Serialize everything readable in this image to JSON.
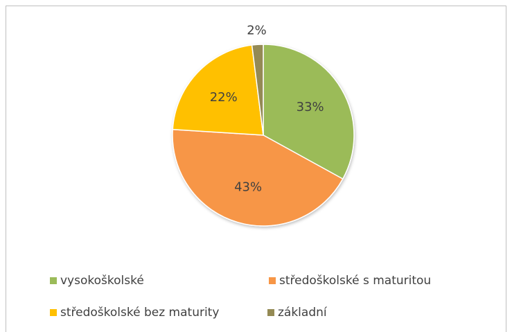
{
  "chart_data": {
    "type": "pie",
    "categories": [
      "vysokoškolské",
      "středoškolské s maturitou",
      "středoškolské bez maturity",
      "základní"
    ],
    "values": [
      33,
      43,
      22,
      2
    ],
    "value_labels": [
      "33%",
      "43%",
      "22%",
      "2%"
    ],
    "colors": [
      "#9bbb59",
      "#f79646",
      "#ffc000",
      "#948a54"
    ],
    "legend": "bottom"
  }
}
